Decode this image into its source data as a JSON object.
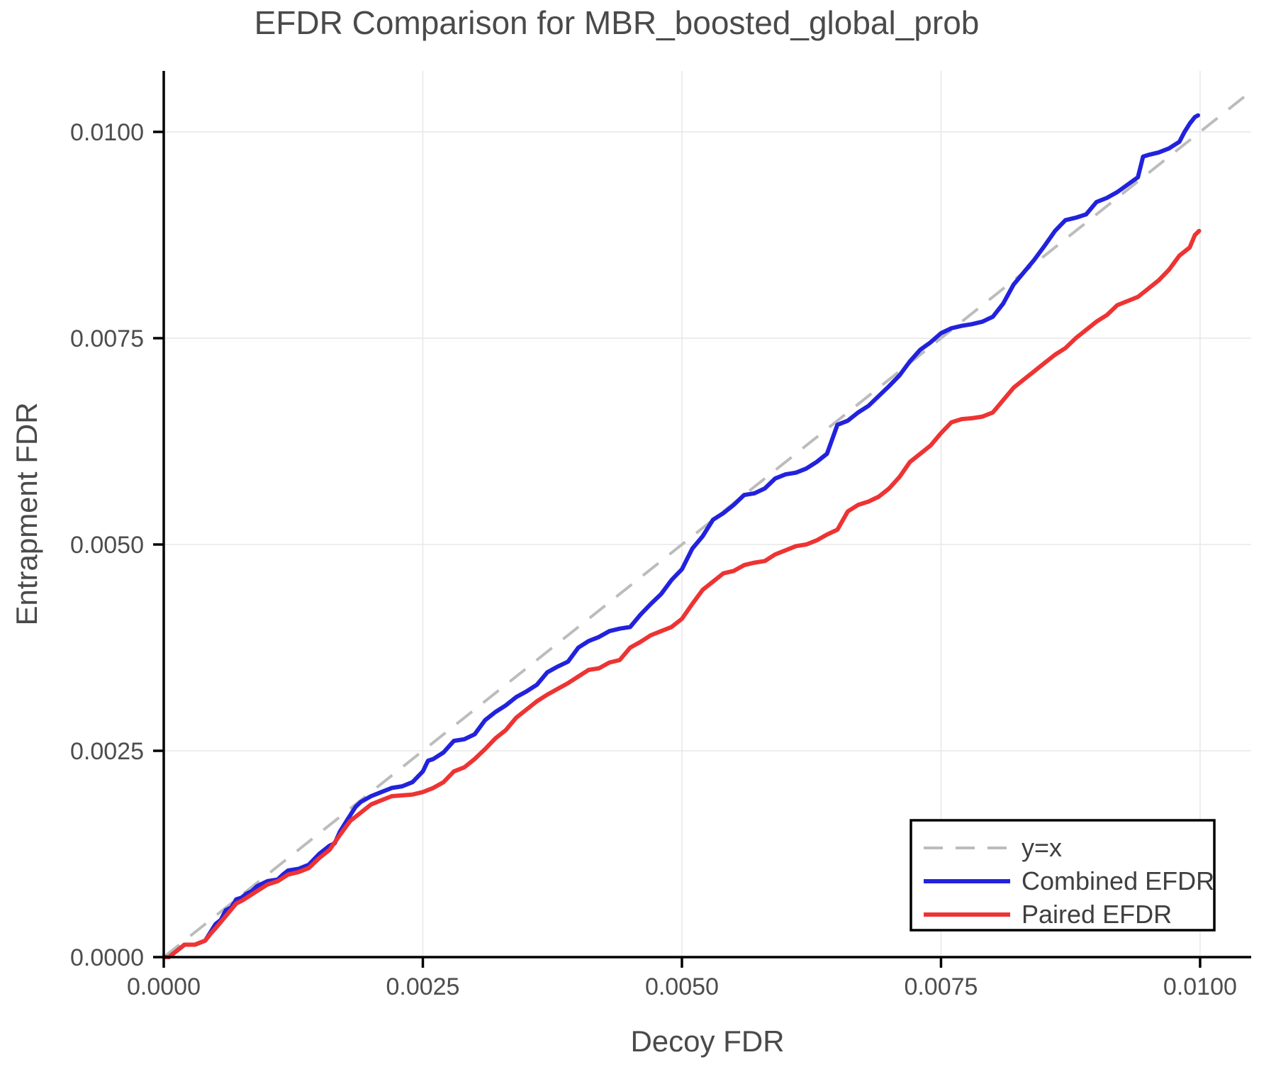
{
  "chart_data": {
    "type": "line",
    "title": "EFDR Comparison for MBR_boosted_global_prob",
    "xlabel": "Decoy FDR",
    "ylabel": "Entrapment FDR",
    "xlim": [
      0,
      0.010493
    ],
    "ylim": [
      0,
      0.010739
    ],
    "grid": true,
    "legend_position": "lower right",
    "xticks": {
      "values": [
        0.0,
        0.0025,
        0.005,
        0.0075,
        0.01
      ],
      "labels": [
        "0.0000",
        "0.0025",
        "0.0050",
        "0.0075",
        "0.0100"
      ]
    },
    "yticks": {
      "values": [
        0.0,
        0.0025,
        0.005,
        0.0075,
        0.01
      ],
      "labels": [
        "0.0000",
        "0.0025",
        "0.0050",
        "0.0075",
        "0.0100"
      ]
    },
    "colors": {
      "text": "#4a4a4a",
      "tick_text": "#4d4d4d",
      "grid": "#e7e7e7",
      "spine": "#000000",
      "diagonal": "#bcbcbc",
      "combined": "#2222dd",
      "paired": "#ee3333",
      "legend_border": "#000000",
      "background": "#ffffff"
    },
    "diagonal": {
      "label": "y=x",
      "style": "dashed",
      "from": [
        0,
        0
      ],
      "to": [
        0.010493,
        0.010493
      ]
    },
    "series": [
      {
        "name": "Combined EFDR",
        "color": "#2222dd",
        "points": [
          [
            0,
            0
          ],
          [
            5e-05,
            0
          ],
          [
            0.0001,
            5e-05
          ],
          [
            0.00015,
            0.0001
          ],
          [
            0.0002,
            0.00015
          ],
          [
            0.0003,
            0.00015
          ],
          [
            0.0004,
            0.0002
          ],
          [
            0.00045,
            0.0003
          ],
          [
            0.0005,
            0.0004
          ],
          [
            0.00055,
            0.00045
          ],
          [
            0.0006,
            0.00057
          ],
          [
            0.00065,
            0.0006
          ],
          [
            0.0007,
            0.0007
          ],
          [
            0.00075,
            0.00072
          ],
          [
            0.0008,
            0.00077
          ],
          [
            0.00085,
            0.0008
          ],
          [
            0.0009,
            0.00086
          ],
          [
            0.001,
            0.00092
          ],
          [
            0.0011,
            0.00094
          ],
          [
            0.00115,
            0.001
          ],
          [
            0.0012,
            0.00105
          ],
          [
            0.0013,
            0.00107
          ],
          [
            0.0014,
            0.00112
          ],
          [
            0.0015,
            0.00125
          ],
          [
            0.0016,
            0.00135
          ],
          [
            0.00165,
            0.00138
          ],
          [
            0.0017,
            0.00152
          ],
          [
            0.00175,
            0.00162
          ],
          [
            0.0018,
            0.00172
          ],
          [
            0.00185,
            0.00182
          ],
          [
            0.0019,
            0.00188
          ],
          [
            0.002,
            0.00195
          ],
          [
            0.0021,
            0.002
          ],
          [
            0.0022,
            0.00205
          ],
          [
            0.0023,
            0.00207
          ],
          [
            0.0024,
            0.00212
          ],
          [
            0.0025,
            0.00225
          ],
          [
            0.00255,
            0.00238
          ],
          [
            0.0026,
            0.0024
          ],
          [
            0.0027,
            0.00248
          ],
          [
            0.0028,
            0.00262
          ],
          [
            0.0029,
            0.00264
          ],
          [
            0.003,
            0.0027
          ],
          [
            0.0031,
            0.00287
          ],
          [
            0.0032,
            0.00297
          ],
          [
            0.0033,
            0.00305
          ],
          [
            0.0034,
            0.00315
          ],
          [
            0.0035,
            0.00322
          ],
          [
            0.0036,
            0.0033
          ],
          [
            0.0037,
            0.00345
          ],
          [
            0.0038,
            0.00352
          ],
          [
            0.0039,
            0.00358
          ],
          [
            0.004,
            0.00375
          ],
          [
            0.0041,
            0.00383
          ],
          [
            0.0042,
            0.00388
          ],
          [
            0.0043,
            0.00395
          ],
          [
            0.0044,
            0.00398
          ],
          [
            0.0045,
            0.004
          ],
          [
            0.0046,
            0.00415
          ],
          [
            0.0047,
            0.00428
          ],
          [
            0.0048,
            0.0044
          ],
          [
            0.0049,
            0.00457
          ],
          [
            0.005,
            0.0047
          ],
          [
            0.0051,
            0.00495
          ],
          [
            0.0052,
            0.0051
          ],
          [
            0.0053,
            0.0053
          ],
          [
            0.0054,
            0.00538
          ],
          [
            0.0055,
            0.00548
          ],
          [
            0.0056,
            0.0056
          ],
          [
            0.0057,
            0.00562
          ],
          [
            0.0058,
            0.00568
          ],
          [
            0.0059,
            0.0058
          ],
          [
            0.006,
            0.00585
          ],
          [
            0.0061,
            0.00587
          ],
          [
            0.0062,
            0.00592
          ],
          [
            0.0063,
            0.006
          ],
          [
            0.0064,
            0.0061
          ],
          [
            0.0065,
            0.00645
          ],
          [
            0.0066,
            0.0065
          ],
          [
            0.0067,
            0.0066
          ],
          [
            0.0068,
            0.00668
          ],
          [
            0.0069,
            0.0068
          ],
          [
            0.007,
            0.00692
          ],
          [
            0.0071,
            0.00705
          ],
          [
            0.0072,
            0.00722
          ],
          [
            0.0073,
            0.00736
          ],
          [
            0.0074,
            0.00745
          ],
          [
            0.0075,
            0.00756
          ],
          [
            0.0076,
            0.00762
          ],
          [
            0.0077,
            0.00765
          ],
          [
            0.0078,
            0.00767
          ],
          [
            0.0079,
            0.0077
          ],
          [
            0.008,
            0.00776
          ],
          [
            0.0081,
            0.00792
          ],
          [
            0.0082,
            0.00815
          ],
          [
            0.0083,
            0.0083
          ],
          [
            0.0084,
            0.00845
          ],
          [
            0.0085,
            0.00862
          ],
          [
            0.0086,
            0.0088
          ],
          [
            0.0087,
            0.00893
          ],
          [
            0.0088,
            0.00896
          ],
          [
            0.0089,
            0.009
          ],
          [
            0.009,
            0.00915
          ],
          [
            0.0091,
            0.0092
          ],
          [
            0.0092,
            0.00927
          ],
          [
            0.0093,
            0.00936
          ],
          [
            0.0094,
            0.00945
          ],
          [
            0.00945,
            0.0097
          ],
          [
            0.0095,
            0.00972
          ],
          [
            0.0096,
            0.00975
          ],
          [
            0.0097,
            0.0098
          ],
          [
            0.0098,
            0.00988
          ],
          [
            0.00985,
            0.01
          ],
          [
            0.0099,
            0.0101
          ],
          [
            0.00995,
            0.01018
          ],
          [
            0.00998,
            0.0102
          ]
        ]
      },
      {
        "name": "Paired EFDR",
        "color": "#ee3333",
        "points": [
          [
            0,
            0
          ],
          [
            5e-05,
            0
          ],
          [
            0.0001,
            5e-05
          ],
          [
            0.00015,
            0.0001
          ],
          [
            0.0002,
            0.00015
          ],
          [
            0.0003,
            0.00015
          ],
          [
            0.0004,
            0.0002
          ],
          [
            0.00045,
            0.00028
          ],
          [
            0.0005,
            0.00035
          ],
          [
            0.0006,
            0.0005
          ],
          [
            0.0007,
            0.00065
          ],
          [
            0.00075,
            0.00068
          ],
          [
            0.0008,
            0.00072
          ],
          [
            0.0009,
            0.0008
          ],
          [
            0.001,
            0.00088
          ],
          [
            0.0011,
            0.00092
          ],
          [
            0.0012,
            0.001
          ],
          [
            0.0013,
            0.00103
          ],
          [
            0.0014,
            0.00108
          ],
          [
            0.0015,
            0.0012
          ],
          [
            0.0016,
            0.0013
          ],
          [
            0.0017,
            0.00148
          ],
          [
            0.0018,
            0.00165
          ],
          [
            0.0019,
            0.00175
          ],
          [
            0.002,
            0.00185
          ],
          [
            0.0021,
            0.0019
          ],
          [
            0.0022,
            0.00195
          ],
          [
            0.0024,
            0.00197
          ],
          [
            0.0025,
            0.002
          ],
          [
            0.0026,
            0.00205
          ],
          [
            0.0027,
            0.00212
          ],
          [
            0.0028,
            0.00225
          ],
          [
            0.0029,
            0.0023
          ],
          [
            0.003,
            0.0024
          ],
          [
            0.0031,
            0.00252
          ],
          [
            0.0032,
            0.00265
          ],
          [
            0.0033,
            0.00275
          ],
          [
            0.0034,
            0.0029
          ],
          [
            0.0035,
            0.003
          ],
          [
            0.0036,
            0.0031
          ],
          [
            0.0037,
            0.00318
          ],
          [
            0.0038,
            0.00325
          ],
          [
            0.0039,
            0.00332
          ],
          [
            0.004,
            0.0034
          ],
          [
            0.0041,
            0.00348
          ],
          [
            0.0042,
            0.0035
          ],
          [
            0.0043,
            0.00357
          ],
          [
            0.0044,
            0.0036
          ],
          [
            0.0045,
            0.00375
          ],
          [
            0.0046,
            0.00382
          ],
          [
            0.0047,
            0.0039
          ],
          [
            0.0048,
            0.00395
          ],
          [
            0.0049,
            0.004
          ],
          [
            0.005,
            0.0041
          ],
          [
            0.0051,
            0.00428
          ],
          [
            0.0052,
            0.00445
          ],
          [
            0.0053,
            0.00455
          ],
          [
            0.0054,
            0.00465
          ],
          [
            0.0055,
            0.00468
          ],
          [
            0.0056,
            0.00475
          ],
          [
            0.0057,
            0.00478
          ],
          [
            0.0058,
            0.0048
          ],
          [
            0.0059,
            0.00488
          ],
          [
            0.006,
            0.00493
          ],
          [
            0.0061,
            0.00498
          ],
          [
            0.0062,
            0.005
          ],
          [
            0.0063,
            0.00505
          ],
          [
            0.0064,
            0.00512
          ],
          [
            0.0065,
            0.00518
          ],
          [
            0.0066,
            0.0054
          ],
          [
            0.0067,
            0.00548
          ],
          [
            0.0068,
            0.00552
          ],
          [
            0.0069,
            0.00558
          ],
          [
            0.007,
            0.00568
          ],
          [
            0.0071,
            0.00582
          ],
          [
            0.0072,
            0.006
          ],
          [
            0.0073,
            0.0061
          ],
          [
            0.0074,
            0.0062
          ],
          [
            0.0075,
            0.00635
          ],
          [
            0.0076,
            0.00648
          ],
          [
            0.0077,
            0.00652
          ],
          [
            0.0078,
            0.00653
          ],
          [
            0.0079,
            0.00655
          ],
          [
            0.008,
            0.0066
          ],
          [
            0.0081,
            0.00675
          ],
          [
            0.0082,
            0.0069
          ],
          [
            0.0083,
            0.007
          ],
          [
            0.0084,
            0.0071
          ],
          [
            0.0085,
            0.0072
          ],
          [
            0.0086,
            0.0073
          ],
          [
            0.0087,
            0.00738
          ],
          [
            0.0088,
            0.0075
          ],
          [
            0.0089,
            0.0076
          ],
          [
            0.009,
            0.0077
          ],
          [
            0.0091,
            0.00778
          ],
          [
            0.0092,
            0.0079
          ],
          [
            0.0093,
            0.00795
          ],
          [
            0.0094,
            0.008
          ],
          [
            0.0095,
            0.0081
          ],
          [
            0.0096,
            0.0082
          ],
          [
            0.0097,
            0.00833
          ],
          [
            0.0098,
            0.0085
          ],
          [
            0.0099,
            0.0086
          ],
          [
            0.00995,
            0.00875
          ],
          [
            0.00999,
            0.0088
          ]
        ]
      }
    ]
  }
}
